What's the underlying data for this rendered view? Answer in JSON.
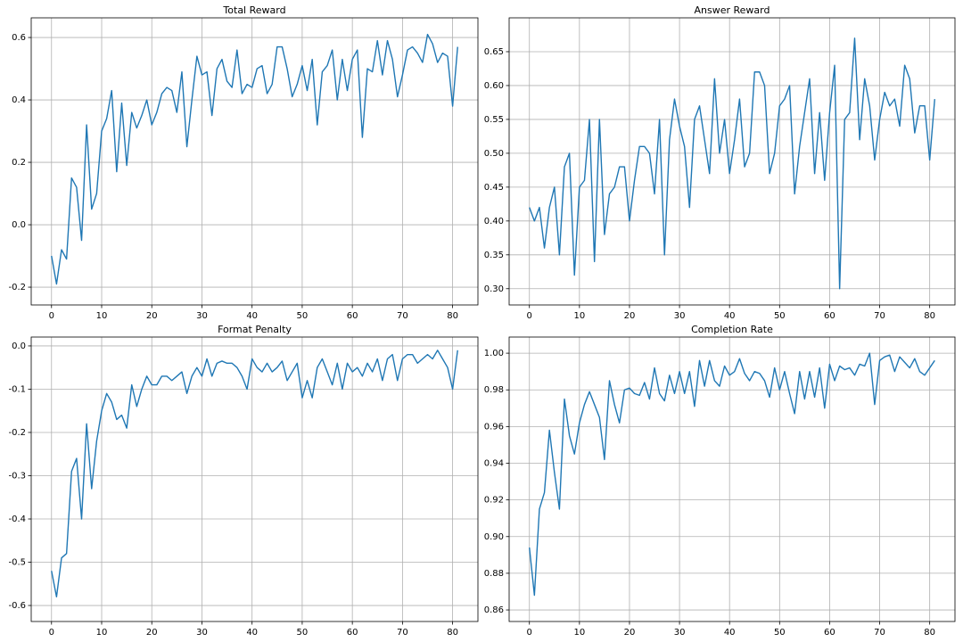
{
  "chart_data": [
    {
      "type": "line",
      "title": "Total Reward",
      "color": "#1f77b4",
      "grid": true,
      "x": [
        0,
        1,
        2,
        3,
        4,
        5,
        6,
        7,
        8,
        9,
        10,
        11,
        12,
        13,
        14,
        15,
        16,
        17,
        18,
        19,
        20,
        21,
        22,
        23,
        24,
        25,
        26,
        27,
        28,
        29,
        30,
        31,
        32,
        33,
        34,
        35,
        36,
        37,
        38,
        39,
        40,
        41,
        42,
        43,
        44,
        45,
        46,
        47,
        48,
        49,
        50,
        51,
        52,
        53,
        54,
        55,
        56,
        57,
        58,
        59,
        60,
        61,
        62,
        63,
        64,
        65,
        66,
        67,
        68,
        69,
        70,
        71,
        72,
        73,
        74,
        75,
        76,
        77,
        78,
        79,
        80,
        81
      ],
      "values": [
        -0.1,
        -0.19,
        -0.08,
        -0.11,
        0.15,
        0.12,
        -0.05,
        0.32,
        0.05,
        0.1,
        0.3,
        0.34,
        0.43,
        0.17,
        0.39,
        0.19,
        0.36,
        0.31,
        0.35,
        0.4,
        0.32,
        0.36,
        0.42,
        0.44,
        0.43,
        0.36,
        0.49,
        0.25,
        0.4,
        0.54,
        0.48,
        0.49,
        0.35,
        0.5,
        0.53,
        0.46,
        0.44,
        0.56,
        0.42,
        0.45,
        0.44,
        0.5,
        0.51,
        0.42,
        0.45,
        0.57,
        0.57,
        0.5,
        0.41,
        0.45,
        0.51,
        0.43,
        0.53,
        0.32,
        0.49,
        0.51,
        0.56,
        0.4,
        0.53,
        0.43,
        0.53,
        0.56,
        0.28,
        0.5,
        0.49,
        0.59,
        0.48,
        0.59,
        0.53,
        0.41,
        0.48,
        0.56,
        0.57,
        0.55,
        0.52,
        0.61,
        0.58,
        0.52,
        0.55,
        0.54,
        0.38,
        0.57
      ],
      "xlim": [
        -4.05,
        85.05
      ],
      "xticks": [
        0,
        10,
        20,
        30,
        40,
        50,
        60,
        70,
        80
      ],
      "ylim": [
        -0.257,
        0.663
      ],
      "yticks": [
        -0.2,
        {
          "value": 0,
          "label": "0.0"
        },
        0.2,
        0.4,
        0.6
      ]
    },
    {
      "type": "line",
      "title": "Answer Reward",
      "color": "#1f77b4",
      "grid": true,
      "x": [
        0,
        1,
        2,
        3,
        4,
        5,
        6,
        7,
        8,
        9,
        10,
        11,
        12,
        13,
        14,
        15,
        16,
        17,
        18,
        19,
        20,
        21,
        22,
        23,
        24,
        25,
        26,
        27,
        28,
        29,
        30,
        31,
        32,
        33,
        34,
        35,
        36,
        37,
        38,
        39,
        40,
        41,
        42,
        43,
        44,
        45,
        46,
        47,
        48,
        49,
        50,
        51,
        52,
        53,
        54,
        55,
        56,
        57,
        58,
        59,
        60,
        61,
        62,
        63,
        64,
        65,
        66,
        67,
        68,
        69,
        70,
        71,
        72,
        73,
        74,
        75,
        76,
        77,
        78,
        79,
        80,
        81
      ],
      "values": [
        0.42,
        0.4,
        0.42,
        0.36,
        0.42,
        0.45,
        0.35,
        0.48,
        0.5,
        0.32,
        0.45,
        0.46,
        0.55,
        0.34,
        0.55,
        0.38,
        0.44,
        0.45,
        0.48,
        0.48,
        0.4,
        0.46,
        0.51,
        0.51,
        0.5,
        0.44,
        0.55,
        0.35,
        0.52,
        0.58,
        0.54,
        0.51,
        0.42,
        0.55,
        0.57,
        0.52,
        0.47,
        0.61,
        0.5,
        0.55,
        0.47,
        0.52,
        0.58,
        0.48,
        0.5,
        0.62,
        0.62,
        0.6,
        0.47,
        0.5,
        0.57,
        0.58,
        0.6,
        0.44,
        0.51,
        0.56,
        0.61,
        0.47,
        0.56,
        0.46,
        0.56,
        0.63,
        0.3,
        0.55,
        0.56,
        0.67,
        0.52,
        0.61,
        0.57,
        0.49,
        0.55,
        0.59,
        0.57,
        0.58,
        0.54,
        0.63,
        0.61,
        0.53,
        0.57,
        0.57,
        0.49,
        0.58
      ],
      "xlim": [
        -4.05,
        85.05
      ],
      "xticks": [
        0,
        10,
        20,
        30,
        40,
        50,
        60,
        70,
        80
      ],
      "ylim": [
        0.276,
        0.7
      ],
      "yticks": [
        {
          "value": 0.3,
          "label": "0.30"
        },
        0.35,
        {
          "value": 0.4,
          "label": "0.40"
        },
        0.45,
        {
          "value": 0.5,
          "label": "0.50"
        },
        0.55,
        {
          "value": 0.6,
          "label": "0.60"
        },
        0.65
      ]
    },
    {
      "type": "line",
      "title": "Format Penalty",
      "color": "#1f77b4",
      "grid": true,
      "x": [
        0,
        1,
        2,
        3,
        4,
        5,
        6,
        7,
        8,
        9,
        10,
        11,
        12,
        13,
        14,
        15,
        16,
        17,
        18,
        19,
        20,
        21,
        22,
        23,
        24,
        25,
        26,
        27,
        28,
        29,
        30,
        31,
        32,
        33,
        34,
        35,
        36,
        37,
        38,
        39,
        40,
        41,
        42,
        43,
        44,
        45,
        46,
        47,
        48,
        49,
        50,
        51,
        52,
        53,
        54,
        55,
        56,
        57,
        58,
        59,
        60,
        61,
        62,
        63,
        64,
        65,
        66,
        67,
        68,
        69,
        70,
        71,
        72,
        73,
        74,
        75,
        76,
        77,
        78,
        79,
        80,
        81
      ],
      "values": [
        -0.52,
        -0.58,
        -0.49,
        -0.48,
        -0.29,
        -0.26,
        -0.4,
        -0.18,
        -0.33,
        -0.22,
        -0.15,
        -0.11,
        -0.13,
        -0.17,
        -0.16,
        -0.19,
        -0.09,
        -0.14,
        -0.1,
        -0.07,
        -0.09,
        -0.09,
        -0.07,
        -0.07,
        -0.08,
        -0.07,
        -0.06,
        -0.11,
        -0.07,
        -0.05,
        -0.07,
        -0.03,
        -0.07,
        -0.04,
        -0.035,
        -0.04,
        -0.04,
        -0.05,
        -0.07,
        -0.1,
        -0.03,
        -0.05,
        -0.06,
        -0.04,
        -0.06,
        -0.05,
        -0.035,
        -0.08,
        -0.06,
        -0.04,
        -0.12,
        -0.08,
        -0.12,
        -0.05,
        -0.03,
        -0.06,
        -0.09,
        -0.04,
        -0.1,
        -0.04,
        -0.06,
        -0.05,
        -0.07,
        -0.04,
        -0.06,
        -0.03,
        -0.08,
        -0.03,
        -0.02,
        -0.08,
        -0.03,
        -0.02,
        -0.02,
        -0.04,
        -0.03,
        -0.02,
        -0.03,
        -0.01,
        -0.03,
        -0.05,
        -0.1,
        -0.01
      ],
      "xlim": [
        -4.05,
        85.05
      ],
      "xticks": [
        0,
        10,
        20,
        30,
        40,
        50,
        60,
        70,
        80
      ],
      "ylim": [
        -0.637,
        0.0205
      ],
      "yticks": [
        -0.6,
        -0.5,
        -0.4,
        -0.3,
        -0.2,
        -0.1,
        {
          "value": 0,
          "label": "0.0"
        }
      ]
    },
    {
      "type": "line",
      "title": "Completion Rate",
      "color": "#1f77b4",
      "grid": true,
      "x": [
        0,
        1,
        2,
        3,
        4,
        5,
        6,
        7,
        8,
        9,
        10,
        11,
        12,
        13,
        14,
        15,
        16,
        17,
        18,
        19,
        20,
        21,
        22,
        23,
        24,
        25,
        26,
        27,
        28,
        29,
        30,
        31,
        32,
        33,
        34,
        35,
        36,
        37,
        38,
        39,
        40,
        41,
        42,
        43,
        44,
        45,
        46,
        47,
        48,
        49,
        50,
        51,
        52,
        53,
        54,
        55,
        56,
        57,
        58,
        59,
        60,
        61,
        62,
        63,
        64,
        65,
        66,
        67,
        68,
        69,
        70,
        71,
        72,
        73,
        74,
        75,
        76,
        77,
        78,
        79,
        80,
        81
      ],
      "values": [
        0.894,
        0.868,
        0.915,
        0.924,
        0.958,
        0.935,
        0.915,
        0.975,
        0.955,
        0.945,
        0.962,
        0.972,
        0.979,
        0.972,
        0.965,
        0.942,
        0.985,
        0.972,
        0.962,
        0.98,
        0.981,
        0.978,
        0.977,
        0.984,
        0.975,
        0.992,
        0.978,
        0.974,
        0.988,
        0.978,
        0.99,
        0.978,
        0.99,
        0.971,
        0.996,
        0.982,
        0.996,
        0.985,
        0.982,
        0.993,
        0.988,
        0.99,
        0.997,
        0.989,
        0.985,
        0.99,
        0.989,
        0.985,
        0.976,
        0.992,
        0.98,
        0.99,
        0.978,
        0.967,
        0.99,
        0.975,
        0.99,
        0.976,
        0.992,
        0.97,
        0.994,
        0.985,
        0.993,
        0.991,
        0.992,
        0.988,
        0.994,
        0.993,
        1.0,
        0.972,
        0.996,
        0.998,
        0.999,
        0.99,
        0.998,
        0.995,
        0.992,
        0.997,
        0.99,
        0.988,
        0.992,
        0.996
      ],
      "xlim": [
        -4.05,
        85.05
      ],
      "xticks": [
        0,
        10,
        20,
        30,
        40,
        50,
        60,
        70,
        80
      ],
      "ylim": [
        0.8537,
        1.0088
      ],
      "yticks": [
        0.86,
        0.88,
        {
          "value": 0.9,
          "label": "0.90"
        },
        0.92,
        0.94,
        0.96,
        0.98,
        {
          "value": 1,
          "label": "1.00"
        }
      ]
    }
  ]
}
